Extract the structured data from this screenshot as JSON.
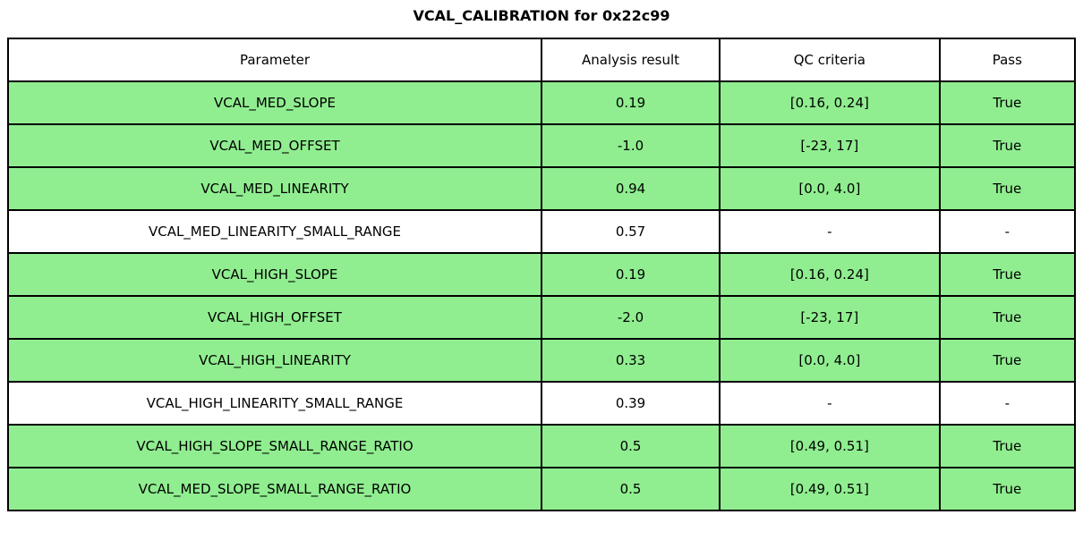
{
  "colors": {
    "pass_row": "#90EE90",
    "neutral_row": "#FFFFFF",
    "border": "#000000",
    "text": "#000000",
    "background": "#FFFFFF"
  },
  "chart_data": {
    "type": "table",
    "title": "VCAL_CALIBRATION for 0x22c99",
    "columns": [
      "Parameter",
      "Analysis result",
      "QC criteria",
      "Pass"
    ],
    "rows": [
      {
        "parameter": "VCAL_MED_SLOPE",
        "analysis_result": "0.19",
        "qc_criteria": "[0.16, 0.24]",
        "pass": "True",
        "highlight": true
      },
      {
        "parameter": "VCAL_MED_OFFSET",
        "analysis_result": "-1.0",
        "qc_criteria": "[-23, 17]",
        "pass": "True",
        "highlight": true
      },
      {
        "parameter": "VCAL_MED_LINEARITY",
        "analysis_result": "0.94",
        "qc_criteria": "[0.0, 4.0]",
        "pass": "True",
        "highlight": true
      },
      {
        "parameter": "VCAL_MED_LINEARITY_SMALL_RANGE",
        "analysis_result": "0.57",
        "qc_criteria": "-",
        "pass": "-",
        "highlight": false
      },
      {
        "parameter": "VCAL_HIGH_SLOPE",
        "analysis_result": "0.19",
        "qc_criteria": "[0.16, 0.24]",
        "pass": "True",
        "highlight": true
      },
      {
        "parameter": "VCAL_HIGH_OFFSET",
        "analysis_result": "-2.0",
        "qc_criteria": "[-23, 17]",
        "pass": "True",
        "highlight": true
      },
      {
        "parameter": "VCAL_HIGH_LINEARITY",
        "analysis_result": "0.33",
        "qc_criteria": "[0.0, 4.0]",
        "pass": "True",
        "highlight": true
      },
      {
        "parameter": "VCAL_HIGH_LINEARITY_SMALL_RANGE",
        "analysis_result": "0.39",
        "qc_criteria": "-",
        "pass": "-",
        "highlight": false
      },
      {
        "parameter": "VCAL_HIGH_SLOPE_SMALL_RANGE_RATIO",
        "analysis_result": "0.5",
        "qc_criteria": "[0.49, 0.51]",
        "pass": "True",
        "highlight": true
      },
      {
        "parameter": "VCAL_MED_SLOPE_SMALL_RANGE_RATIO",
        "analysis_result": "0.5",
        "qc_criteria": "[0.49, 0.51]",
        "pass": "True",
        "highlight": true
      }
    ]
  }
}
